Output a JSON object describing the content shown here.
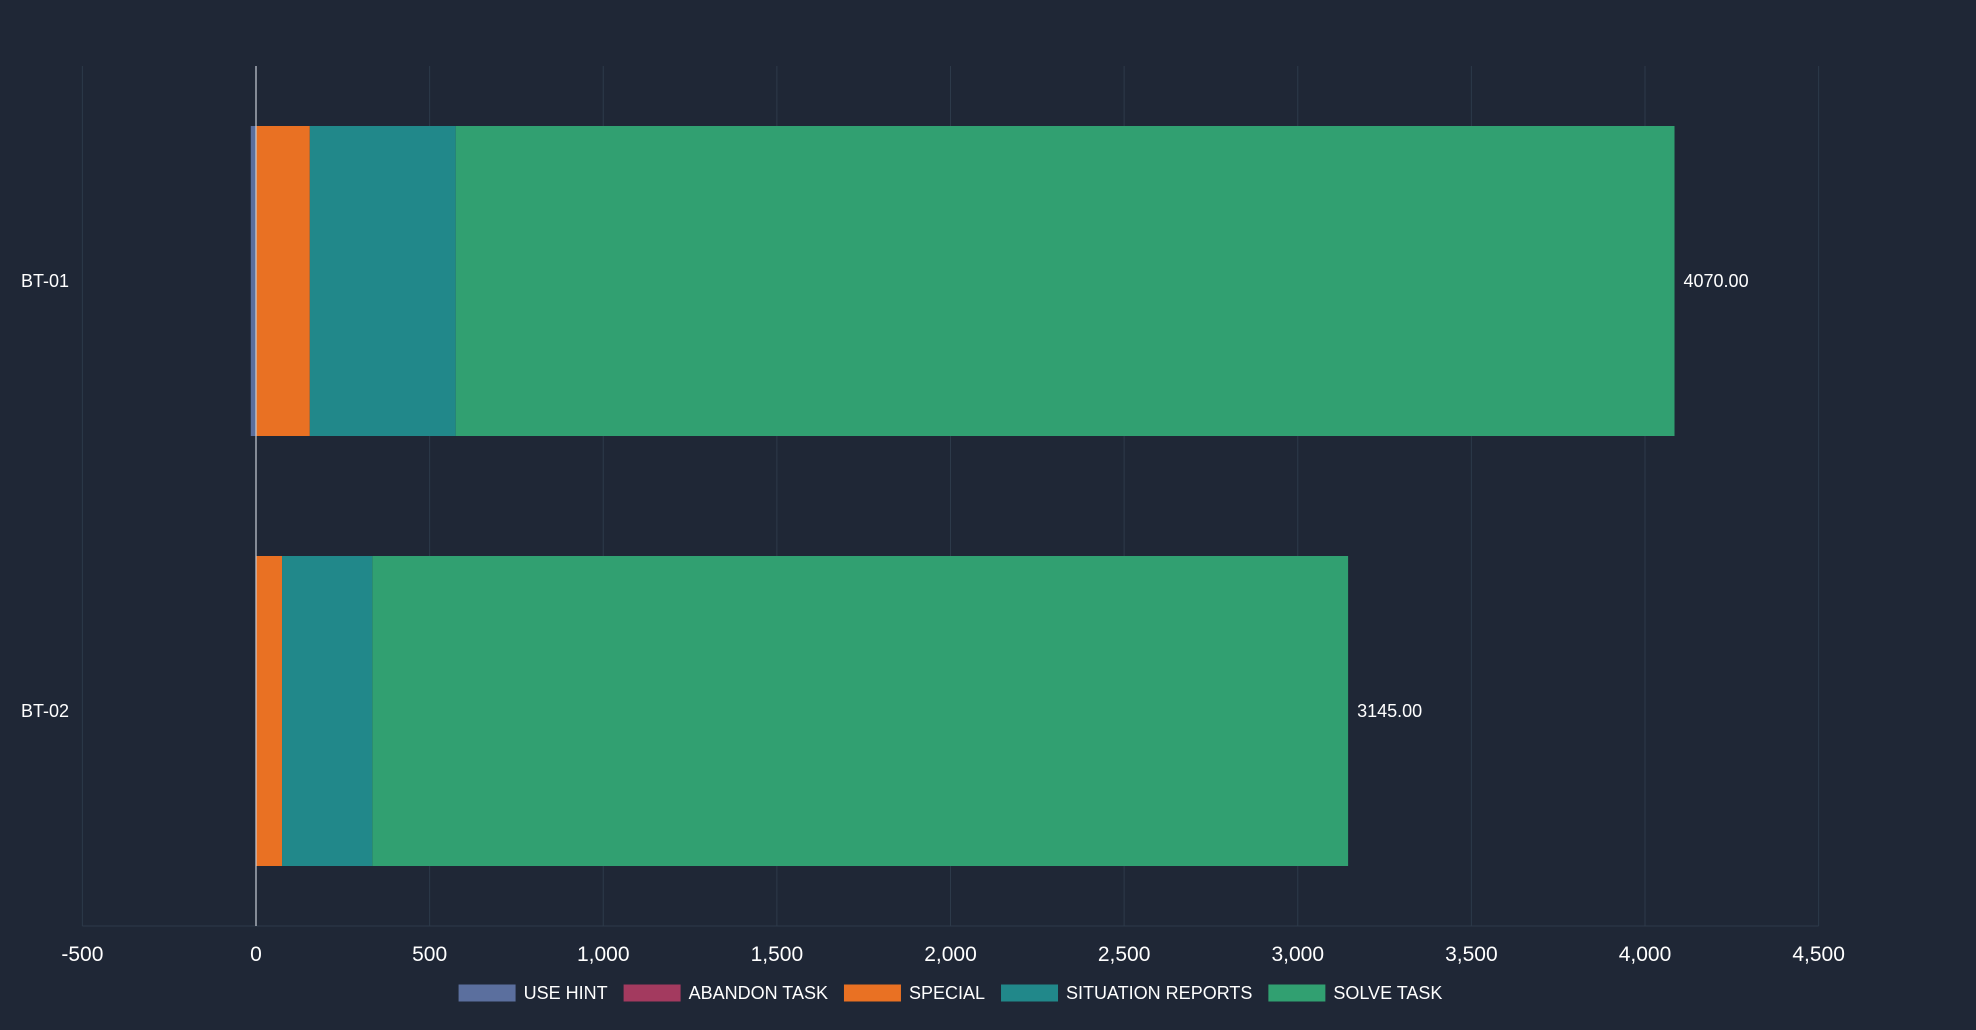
{
  "chart_data": {
    "type": "bar",
    "orientation": "horizontal",
    "stacked": true,
    "categories": [
      "BT-01",
      "BT-02"
    ],
    "series": [
      {
        "name": "USE HINT",
        "color": "#5b6f9e",
        "values": [
          -15,
          0
        ]
      },
      {
        "name": "ABANDON TASK",
        "color": "#a33a5f",
        "values": [
          0,
          0
        ]
      },
      {
        "name": "SPECIAL",
        "color": "#e97123",
        "values": [
          155,
          75
        ]
      },
      {
        "name": "SITUATION REPORTS",
        "color": "#21888a",
        "values": [
          420,
          260
        ]
      },
      {
        "name": "SOLVE TASK",
        "color": "#31a071",
        "values": [
          3510,
          2810
        ]
      }
    ],
    "totals": [
      "4070.00",
      "3145.00"
    ],
    "x_ticks": [
      -500,
      0,
      500,
      1000,
      1500,
      2000,
      2500,
      3000,
      3500,
      4000,
      4500
    ],
    "x_tick_labels": [
      "-500",
      "0",
      "500",
      "1,000",
      "1,500",
      "2,000",
      "2,500",
      "3,000",
      "3,500",
      "4,000",
      "4,500"
    ],
    "xlim": [
      -500,
      4500
    ],
    "grid": "vertical",
    "legend_position": "bottom",
    "title": "",
    "xlabel": "",
    "ylabel": ""
  },
  "colors": {
    "background": "#1f2736",
    "grid": "#2d3a4a",
    "zero_line": "#c8cdd6",
    "text": "#ffffff"
  }
}
